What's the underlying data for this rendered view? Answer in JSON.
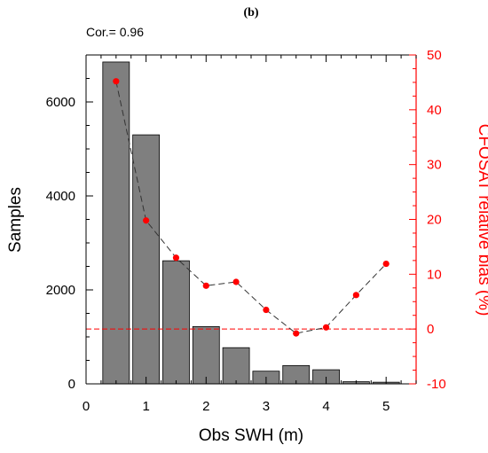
{
  "panel_label": "(b)",
  "annotation": "Cor.= 0.96",
  "chart_data": {
    "type": "bar",
    "x": [
      0.5,
      1.0,
      1.5,
      2.0,
      2.5,
      3.0,
      3.5,
      4.0,
      4.5,
      5.0
    ],
    "xlabel": "Obs SWH (m)",
    "xlim": [
      0,
      5.5
    ],
    "xticks": [
      0,
      1,
      2,
      3,
      4,
      5
    ],
    "ylabel": "Samples",
    "ylim": [
      0,
      7000
    ],
    "yticks": [
      0,
      2000,
      4000,
      6000
    ],
    "y2label": "CFOSAT relative bias (%)",
    "y2lim": [
      -10,
      50
    ],
    "y2ticks": [
      -10,
      0,
      10,
      20,
      30,
      40,
      50
    ],
    "series": [
      {
        "type": "bar",
        "values": [
          6850,
          5300,
          2620,
          1220,
          770,
          270,
          390,
          300,
          45,
          35
        ],
        "color": "#7f7f7f",
        "axis": "left"
      },
      {
        "type": "line",
        "values": [
          45.2,
          19.8,
          13.0,
          7.9,
          8.6,
          3.5,
          -0.8,
          0.3,
          6.2,
          11.9
        ],
        "color": "#ff0000",
        "line_color": "#333333",
        "line_style": "dashed",
        "axis": "right"
      }
    ],
    "reference_line": {
      "y2": 0,
      "color": "#ff0000",
      "style": "dashed"
    },
    "colors": {
      "bars": "#7f7f7f",
      "bias": "#ff0000",
      "axis_right": "#ff0000",
      "axis_left": "#000000"
    }
  }
}
